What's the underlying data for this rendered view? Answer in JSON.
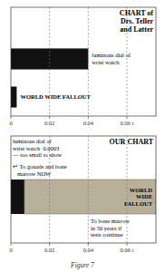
{
  "chart_data": [
    {
      "type": "bar",
      "orientation": "horizontal",
      "title": "CHART of\nDrs. Teller\nand Latter",
      "categories": [
        "luminous dial of\nwrist watch",
        "WORLD WIDE FALLOUT"
      ],
      "values": [
        0.04,
        0.003
      ],
      "color": "#111111",
      "xlim": [
        0,
        0.075
      ],
      "xticks": [
        0,
        0.02,
        0.04,
        {
          "value": 0.06,
          "label": "0.06 r"
        }
      ],
      "grid": true,
      "tick_labels": "x"
    },
    {
      "type": "bar",
      "orientation": "horizontal",
      "stacked": true,
      "title": "OUR CHART",
      "categories": [
        null
      ],
      "series": [
        {
          "name": "↵ To gonads and bone\n   marrow NOW",
          "color": "#111111",
          "values": [
            0.007
          ]
        },
        {
          "name": "WORLD\nWIDE\nFALLOUT",
          "color": "#b8b098",
          "values": [
            0.068
          ]
        }
      ],
      "annotations": [
        "luminous dial of\nwrist watch  0.0003\n— too small to show",
        "To bone marrow\nin 50 years if\ntests continue",
        "Figure 7"
      ],
      "xlim": [
        0,
        0.075
      ],
      "xticks": [
        0,
        0.02,
        0.04,
        {
          "value": 0.06,
          "label": "0.06 r"
        }
      ],
      "grid": true,
      "tick_labels": "x"
    }
  ]
}
